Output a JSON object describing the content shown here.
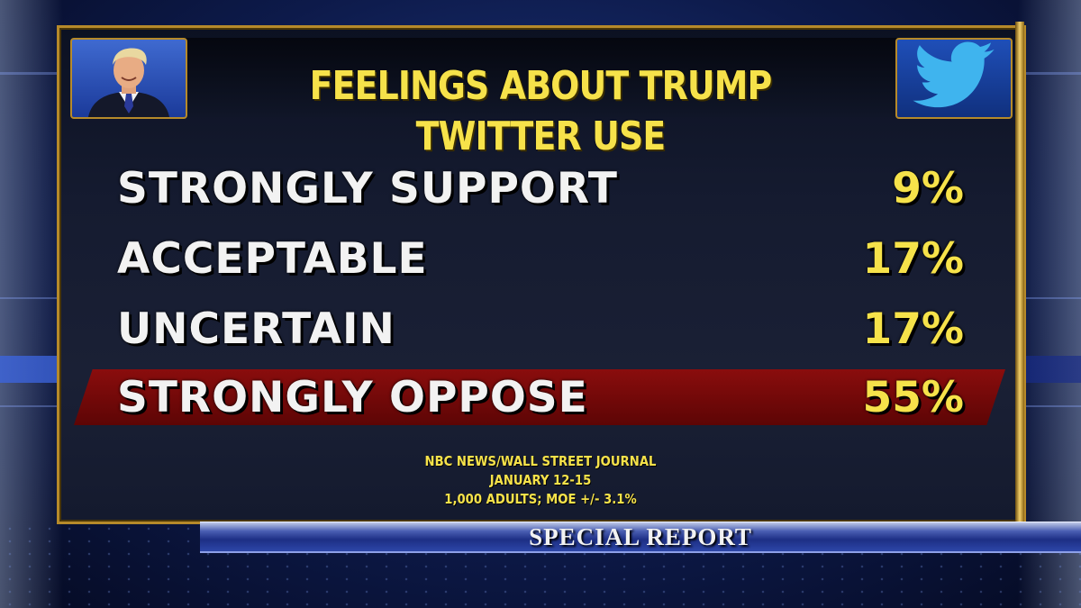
{
  "graphic": {
    "title": "FEELINGS ABOUT TRUMP TWITTER USE",
    "rows": [
      {
        "label": "STRONGLY SUPPORT",
        "value": "9%"
      },
      {
        "label": "ACCEPTABLE",
        "value": "17%"
      },
      {
        "label": "UNCERTAIN",
        "value": "17%"
      },
      {
        "label": "STRONGLY OPPOSE",
        "value": "55%",
        "highlighted": true
      }
    ],
    "source": {
      "line1": "NBC NEWS/WALL STREET JOURNAL",
      "line2": "JANUARY 12-15",
      "line3": "1,000 ADULTS; MOE +/- 3.1%"
    }
  },
  "banner": {
    "text": "SPECIAL REPORT"
  },
  "icons": {
    "left": "portrait-photo",
    "right": "twitter-bird-icon"
  },
  "colors": {
    "title": "#f6e24a",
    "label": "#f2f2f2",
    "value": "#f6e24a",
    "highlight": "#7a0a0a",
    "frame": "#b68a2a",
    "banner": "#1d2f85"
  }
}
